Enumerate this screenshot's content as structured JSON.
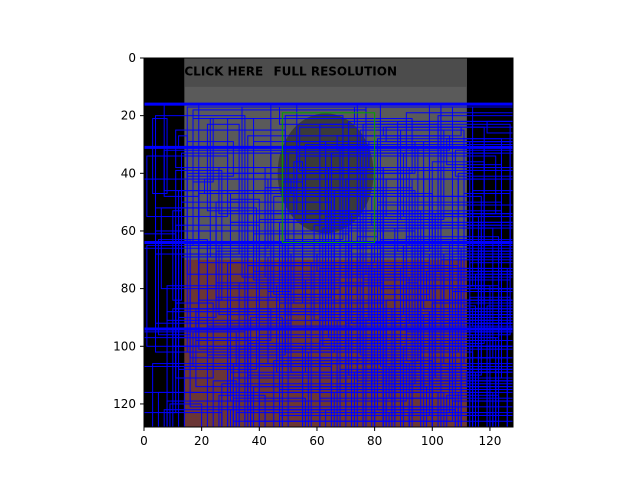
{
  "chart_data": {
    "type": "heatmap",
    "title": "",
    "xlabel": "",
    "ylabel": "",
    "xlim": [
      0,
      128
    ],
    "ylim": [
      128,
      0
    ],
    "x_ticks": [
      0,
      20,
      40,
      60,
      80,
      100,
      120
    ],
    "y_ticks": [
      0,
      20,
      40,
      60,
      80,
      100,
      120
    ],
    "image_overlay_text": {
      "prefix": "CLICK HERE",
      "emphasis": "FULL RESOLUTION"
    },
    "highlight_box": {
      "x0": 48,
      "y0": 19,
      "x1": 80,
      "y1": 64,
      "color": "#00a000"
    },
    "box_overlay_color": "#0000ff",
    "background_colors": {
      "banner": "#4c4c4c",
      "figure_bg": "#5a5a5a",
      "border_dark": "#000000",
      "tint_red": "#7a1a1a"
    }
  }
}
